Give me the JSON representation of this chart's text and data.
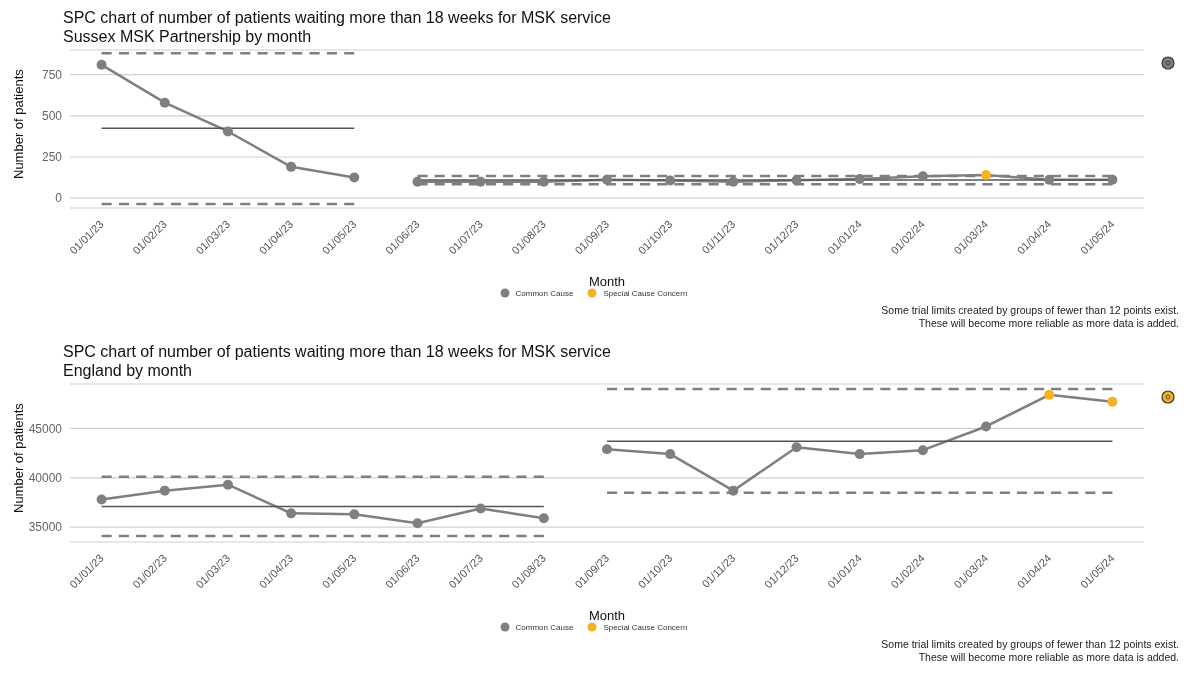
{
  "chart_data": [
    {
      "type": "line",
      "title": "SPC chart of number of patients waiting more than 18 weeks for MSK service",
      "subtitle": "Sussex MSK Partnership by month",
      "xlabel": "Month",
      "ylabel": "Number of patients",
      "categories": [
        "01/01/23",
        "01/02/23",
        "01/03/23",
        "01/04/23",
        "01/05/23",
        "01/06/23",
        "01/07/23",
        "01/08/23",
        "01/09/23",
        "01/10/23",
        "01/11/23",
        "01/12/23",
        "01/01/24",
        "01/02/24",
        "01/03/24",
        "01/04/24",
        "01/05/24"
      ],
      "ylim": [
        -60,
        900
      ],
      "yticks": [
        0,
        250,
        500,
        750
      ],
      "grid": "y",
      "legend": "bottom",
      "annotations": [
        "Some trial limits created by groups of fewer than 12 points exist.",
        "These will become more reliable as more data is added."
      ],
      "series": [
        {
          "type": "line",
          "color": "#7f7f7f",
          "marker": "none",
          "line_style": "solid",
          "values": [
            810,
            580,
            405,
            190,
            125,
            null,
            null,
            null,
            null,
            null,
            null,
            null,
            null,
            null,
            null,
            null,
            null
          ]
        },
        {
          "type": "line",
          "color": "#7f7f7f",
          "marker": "none",
          "line_style": "solid",
          "values": [
            null,
            null,
            null,
            null,
            null,
            100,
            100,
            100,
            112,
            107,
            100,
            109,
            116,
            133,
            140,
            112,
            112
          ]
        },
        {
          "type": "line",
          "color": "#555555",
          "marker": "none",
          "line_style": "solid",
          "values": [
            425,
            425,
            425,
            425,
            425,
            null,
            null,
            null,
            null,
            null,
            null,
            null,
            null,
            null,
            null,
            null,
            null
          ]
        },
        {
          "type": "line",
          "color": "#555555",
          "marker": "none",
          "line_style": "solid",
          "values": [
            null,
            null,
            null,
            null,
            null,
            110,
            110,
            110,
            110,
            110,
            110,
            110,
            110,
            110,
            110,
            110,
            110
          ]
        },
        {
          "type": "line",
          "color": "#7f7f7f",
          "marker": "none",
          "line_style": "dashed",
          "values": [
            880,
            880,
            880,
            880,
            880,
            null,
            null,
            null,
            null,
            null,
            null,
            null,
            null,
            null,
            null,
            null,
            null
          ]
        },
        {
          "type": "line",
          "color": "#7f7f7f",
          "marker": "none",
          "line_style": "dashed",
          "values": [
            null,
            null,
            null,
            null,
            null,
            135,
            135,
            135,
            135,
            135,
            135,
            135,
            135,
            135,
            135,
            135,
            135
          ]
        },
        {
          "type": "line",
          "color": "#7f7f7f",
          "marker": "none",
          "line_style": "dashed",
          "values": [
            -35,
            -35,
            -35,
            -35,
            -35,
            null,
            null,
            null,
            null,
            null,
            null,
            null,
            null,
            null,
            null,
            null,
            null
          ]
        },
        {
          "type": "line",
          "color": "#7f7f7f",
          "marker": "none",
          "line_style": "dashed",
          "values": [
            null,
            null,
            null,
            null,
            null,
            85,
            85,
            85,
            85,
            85,
            85,
            85,
            85,
            85,
            85,
            85,
            85
          ]
        },
        {
          "type": "scatter",
          "name": "Common Cause",
          "color": "#7f7f7f",
          "marker": "circle",
          "values": [
            810,
            580,
            405,
            190,
            125,
            100,
            100,
            100,
            112,
            107,
            100,
            109,
            116,
            133,
            null,
            112,
            112
          ]
        },
        {
          "type": "scatter",
          "name": "Special Cause Concern",
          "color": "#f5b324",
          "marker": "circle",
          "values": [
            null,
            null,
            null,
            null,
            null,
            null,
            null,
            null,
            null,
            null,
            null,
            null,
            null,
            null,
            140,
            null,
            null
          ]
        }
      ]
    },
    {
      "type": "line",
      "title": "SPC chart of number of patients waiting more than 18 weeks for MSK service",
      "subtitle": "England by month",
      "xlabel": "Month",
      "ylabel": "Number of patients",
      "categories": [
        "01/01/23",
        "01/02/23",
        "01/03/23",
        "01/04/23",
        "01/05/23",
        "01/06/23",
        "01/07/23",
        "01/08/23",
        "01/09/23",
        "01/10/23",
        "01/11/23",
        "01/12/23",
        "01/01/24",
        "01/02/24",
        "01/03/24",
        "01/04/24",
        "01/05/24"
      ],
      "ylim": [
        33500,
        49500
      ],
      "yticks": [
        35000,
        40000,
        45000
      ],
      "grid": "y",
      "legend": "bottom",
      "annotations": [
        "Some trial limits created by groups of fewer than 12 points exist.",
        "These will become more reliable as more data is added."
      ],
      "series": [
        {
          "type": "line",
          "color": "#7f7f7f",
          "marker": "none",
          "line_style": "solid",
          "values": [
            37800,
            38700,
            39300,
            36400,
            36300,
            35400,
            36900,
            35900,
            null,
            null,
            null,
            null,
            null,
            null,
            null,
            null,
            null
          ]
        },
        {
          "type": "line",
          "color": "#7f7f7f",
          "marker": "none",
          "line_style": "solid",
          "values": [
            null,
            null,
            null,
            null,
            null,
            null,
            null,
            null,
            42900,
            42400,
            38700,
            43100,
            42400,
            42800,
            45200,
            48400,
            47700
          ]
        },
        {
          "type": "line",
          "color": "#555555",
          "marker": "none",
          "line_style": "solid",
          "values": [
            37100,
            37100,
            37100,
            37100,
            37100,
            37100,
            37100,
            37100,
            null,
            null,
            null,
            null,
            null,
            null,
            null,
            null,
            null
          ]
        },
        {
          "type": "line",
          "color": "#555555",
          "marker": "none",
          "line_style": "solid",
          "values": [
            null,
            null,
            null,
            null,
            null,
            null,
            null,
            null,
            43700,
            43700,
            43700,
            43700,
            43700,
            43700,
            43700,
            43700,
            43700
          ]
        },
        {
          "type": "line",
          "color": "#7f7f7f",
          "marker": "none",
          "line_style": "dashed",
          "values": [
            40100,
            40100,
            40100,
            40100,
            40100,
            40100,
            40100,
            40100,
            null,
            null,
            null,
            null,
            null,
            null,
            null,
            null,
            null
          ]
        },
        {
          "type": "line",
          "color": "#7f7f7f",
          "marker": "none",
          "line_style": "dashed",
          "values": [
            null,
            null,
            null,
            null,
            null,
            null,
            null,
            null,
            49000,
            49000,
            49000,
            49000,
            49000,
            49000,
            49000,
            49000,
            49000
          ]
        },
        {
          "type": "line",
          "color": "#7f7f7f",
          "marker": "none",
          "line_style": "dashed",
          "values": [
            34100,
            34100,
            34100,
            34100,
            34100,
            34100,
            34100,
            34100,
            null,
            null,
            null,
            null,
            null,
            null,
            null,
            null,
            null
          ]
        },
        {
          "type": "line",
          "color": "#7f7f7f",
          "marker": "none",
          "line_style": "dashed",
          "values": [
            null,
            null,
            null,
            null,
            null,
            null,
            null,
            null,
            38500,
            38500,
            38500,
            38500,
            38500,
            38500,
            38500,
            38500,
            38500
          ]
        },
        {
          "type": "scatter",
          "name": "Common Cause",
          "color": "#7f7f7f",
          "marker": "circle",
          "values": [
            37800,
            38700,
            39300,
            36400,
            36300,
            35400,
            36900,
            35900,
            42900,
            42400,
            38700,
            43100,
            42400,
            42800,
            45200,
            null,
            null
          ]
        },
        {
          "type": "scatter",
          "name": "Special Cause Concern",
          "color": "#f5b324",
          "marker": "circle",
          "values": [
            null,
            null,
            null,
            null,
            null,
            null,
            null,
            null,
            null,
            null,
            null,
            null,
            null,
            null,
            null,
            48400,
            47700
          ]
        }
      ]
    }
  ]
}
